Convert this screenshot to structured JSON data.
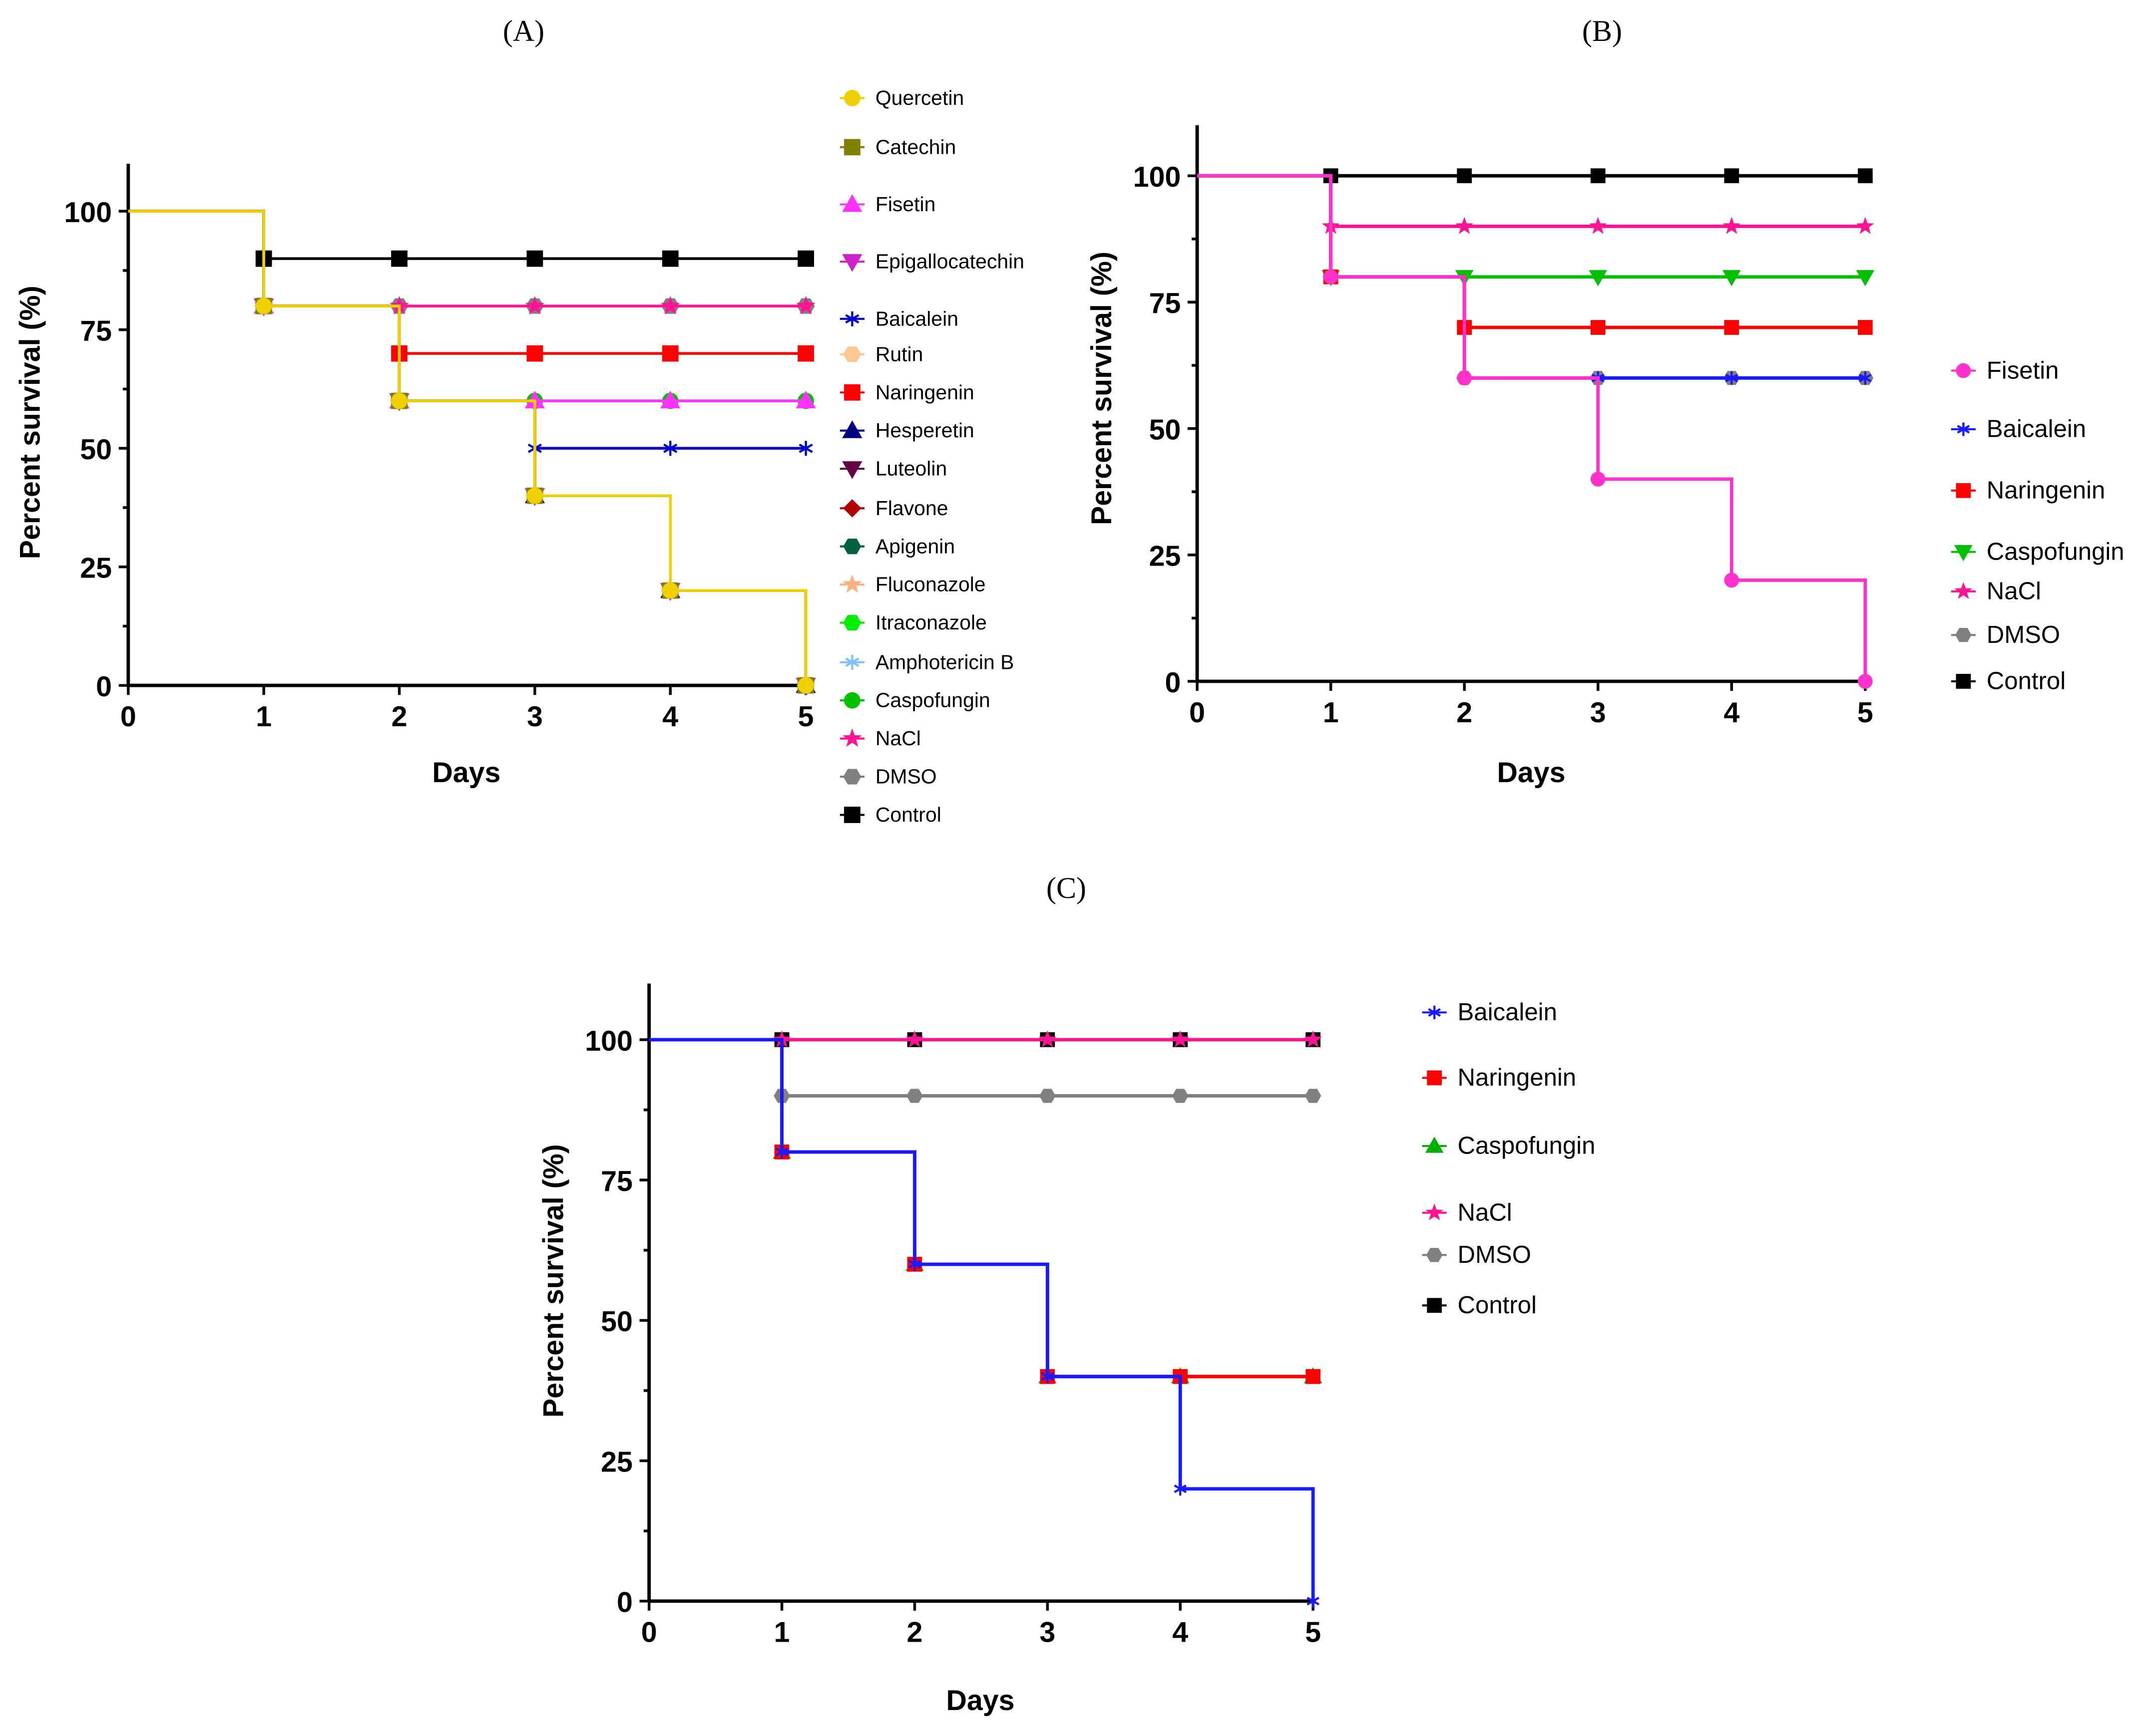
{
  "chart_data": [
    {
      "type": "line",
      "title": "(A)",
      "xlabel": "Days",
      "ylabel": "Percent survival (%)",
      "x": [
        0,
        1,
        2,
        3,
        4,
        5
      ],
      "xlim": [
        0,
        5
      ],
      "ylim": [
        0,
        110
      ],
      "xticks": [
        "0",
        "1",
        "2",
        "3",
        "4",
        "5"
      ],
      "yticks": [
        "0",
        "25",
        "50",
        "75",
        "100"
      ],
      "legend_position": "right",
      "series": [
        {
          "name": "Quercetin",
          "color": "#f0d000",
          "marker": "circle",
          "values": [
            100,
            80,
            60,
            40,
            20,
            0
          ]
        },
        {
          "name": "Catechin",
          "color": "#808000",
          "marker": "square",
          "values": [
            100,
            80,
            60,
            40,
            20,
            0
          ]
        },
        {
          "name": "Fisetin",
          "color": "#ff33ff",
          "marker": "triangle-up",
          "values": [
            100,
            80,
            60,
            60,
            60,
            60
          ]
        },
        {
          "name": "Epigallocatechin",
          "color": "#cc22cc",
          "marker": "triangle-down",
          "values": [
            100,
            80,
            60,
            40,
            20,
            0
          ]
        },
        {
          "name": "Baicalein",
          "color": "#0000cc",
          "marker": "asterisk",
          "values": [
            100,
            80,
            60,
            50,
            50,
            50
          ]
        },
        {
          "name": "Rutin",
          "color": "#ffc890",
          "marker": "hexagon",
          "values": [
            100,
            80,
            60,
            40,
            20,
            0
          ]
        },
        {
          "name": "Naringenin",
          "color": "#ff0000",
          "marker": "square",
          "values": [
            100,
            80,
            70,
            70,
            70,
            70
          ]
        },
        {
          "name": "Hesperetin",
          "color": "#000080",
          "marker": "triangle-up",
          "values": [
            100,
            80,
            60,
            40,
            20,
            0
          ]
        },
        {
          "name": "Luteolin",
          "color": "#660044",
          "marker": "triangle-down",
          "values": [
            100,
            80,
            60,
            40,
            20,
            0
          ]
        },
        {
          "name": "Flavone",
          "color": "#b00000",
          "marker": "diamond",
          "values": [
            100,
            80,
            60,
            40,
            20,
            0
          ]
        },
        {
          "name": "Apigenin",
          "color": "#006040",
          "marker": "hexagon",
          "values": [
            100,
            80,
            60,
            40,
            20,
            0
          ]
        },
        {
          "name": "Fluconazole",
          "color": "#ffb080",
          "marker": "star",
          "values": [
            100,
            80,
            60,
            40,
            20,
            0
          ]
        },
        {
          "name": "Itraconazole",
          "color": "#00ee00",
          "marker": "hexagon",
          "values": [
            100,
            80,
            60,
            40,
            20,
            0
          ]
        },
        {
          "name": "Amphotericin B",
          "color": "#80c0ff",
          "marker": "asterisk",
          "values": [
            100,
            80,
            60,
            40,
            20,
            0
          ]
        },
        {
          "name": "Caspofungin",
          "color": "#00c000",
          "marker": "circle",
          "values": [
            100,
            80,
            60,
            60,
            60,
            60
          ]
        },
        {
          "name": "NaCl",
          "color": "#ff1493",
          "marker": "star",
          "values": [
            100,
            80,
            80,
            80,
            80,
            80
          ]
        },
        {
          "name": "DMSO",
          "color": "#808080",
          "marker": "hexagon",
          "values": [
            100,
            80,
            80,
            80,
            80,
            80
          ]
        },
        {
          "name": "Control",
          "color": "#000000",
          "marker": "square",
          "values": [
            100,
            90,
            90,
            90,
            90,
            90
          ]
        }
      ]
    },
    {
      "type": "line",
      "title": "(B)",
      "xlabel": "Days",
      "ylabel": "Percent survival (%)",
      "x": [
        0,
        1,
        2,
        3,
        4,
        5
      ],
      "xlim": [
        0,
        5
      ],
      "ylim": [
        0,
        110
      ],
      "xticks": [
        "0",
        "1",
        "2",
        "3",
        "4",
        "5"
      ],
      "yticks": [
        "0",
        "25",
        "50",
        "75",
        "100"
      ],
      "legend_position": "right",
      "series": [
        {
          "name": "Fisetin",
          "color": "#ff33cc",
          "marker": "circle",
          "values": [
            100,
            80,
            60,
            40,
            20,
            0
          ]
        },
        {
          "name": "Baicalein",
          "color": "#1a1aff",
          "marker": "asterisk",
          "values": [
            100,
            80,
            60,
            60,
            60,
            60
          ]
        },
        {
          "name": "Naringenin",
          "color": "#ff0000",
          "marker": "square",
          "values": [
            100,
            80,
            70,
            70,
            70,
            70
          ]
        },
        {
          "name": "Caspofungin",
          "color": "#00c000",
          "marker": "triangle-down",
          "values": [
            100,
            80,
            80,
            80,
            80,
            80
          ]
        },
        {
          "name": "NaCl",
          "color": "#ff1493",
          "marker": "star",
          "values": [
            100,
            90,
            90,
            90,
            90,
            90
          ]
        },
        {
          "name": "DMSO",
          "color": "#808080",
          "marker": "hexagon",
          "values": [
            100,
            80,
            60,
            60,
            60,
            60
          ]
        },
        {
          "name": "Control",
          "color": "#000000",
          "marker": "square",
          "values": [
            100,
            100,
            100,
            100,
            100,
            100
          ]
        }
      ]
    },
    {
      "type": "line",
      "title": "(C)",
      "xlabel": "Days",
      "ylabel": "Percent survival (%)",
      "x": [
        0,
        1,
        2,
        3,
        4,
        5
      ],
      "xlim": [
        0,
        5
      ],
      "ylim": [
        0,
        110
      ],
      "xticks": [
        "0",
        "1",
        "2",
        "3",
        "4",
        "5"
      ],
      "yticks": [
        "0",
        "25",
        "50",
        "75",
        "100"
      ],
      "legend_position": "right",
      "series": [
        {
          "name": "Baicalein",
          "color": "#1a1aff",
          "marker": "asterisk",
          "values": [
            100,
            80,
            60,
            40,
            20,
            0
          ]
        },
        {
          "name": "Naringenin",
          "color": "#ff0000",
          "marker": "square",
          "values": [
            100,
            80,
            60,
            40,
            40,
            40
          ]
        },
        {
          "name": "Caspofungin",
          "color": "#00b000",
          "marker": "triangle-up",
          "values": [
            100,
            80,
            60,
            40,
            40,
            40
          ]
        },
        {
          "name": "NaCl",
          "color": "#ff1493",
          "marker": "star",
          "values": [
            100,
            100,
            100,
            100,
            100,
            100
          ]
        },
        {
          "name": "DMSO",
          "color": "#808080",
          "marker": "hexagon",
          "values": [
            100,
            90,
            90,
            90,
            90,
            90
          ]
        },
        {
          "name": "Control",
          "color": "#000000",
          "marker": "square",
          "values": [
            100,
            100,
            100,
            100,
            100,
            100
          ]
        }
      ]
    }
  ]
}
